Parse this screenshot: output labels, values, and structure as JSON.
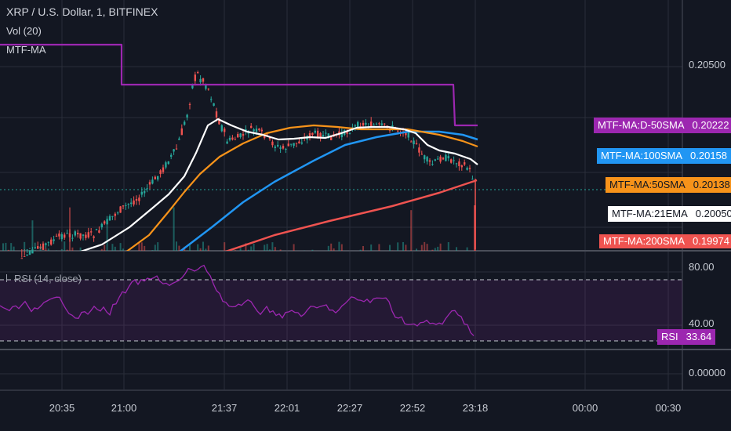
{
  "header": {
    "symbol": "XRP / U.S. Dollar, 1, BITFINEX",
    "volume_indicator": "Vol (20)",
    "ma_indicator": "MTF-MA",
    "rsi_indicator": "RSI (14, close)"
  },
  "colors": {
    "background": "#131722",
    "grid": "#2a2e39",
    "up_candle": "#26a69a",
    "down_candle": "#ef5350",
    "ma_21ema": "#ffffff",
    "ma_50sma": "#f7931a",
    "ma_100sma": "#2196f3",
    "ma_200sma": "#ef5350",
    "ma_d50sma": "#9c27b0",
    "rsi": "#9c27b0"
  },
  "price_axis": {
    "labels": [
      "0.20500"
    ]
  },
  "rsi_axis": {
    "labels": [
      "80.00",
      "40.00"
    ],
    "zero_label": "0.00000"
  },
  "time_axis": {
    "labels": [
      "20:35",
      "21:00",
      "21:37",
      "22:01",
      "22:27",
      "22:52",
      "23:18",
      "00:00",
      "00:30"
    ]
  },
  "ma_tags": [
    {
      "name": "MTF-MA:D-50SMA",
      "value": "0.20222",
      "color": "#9c27b0",
      "text": "#ffffff"
    },
    {
      "name": "MTF-MA:100SMA",
      "value": "0.20158",
      "color": "#2196f3",
      "text": "#ffffff"
    },
    {
      "name": "MTF-MA:50SMA",
      "value": "0.20138",
      "color": "#f7931a",
      "text": "#131722"
    },
    {
      "name": "MTF-MA:21EMA",
      "value": "0.20050",
      "color": "#ffffff",
      "text": "#131722"
    },
    {
      "name": "MTF-MA:200SMA",
      "value": "0.19974",
      "color": "#ef5350",
      "text": "#ffffff"
    }
  ],
  "rsi_tag": {
    "name": "RSI",
    "value": "33.64",
    "color": "#9c27b0"
  },
  "chart_data": {
    "type": "line",
    "series": [
      {
        "name": "MTF-MA:D-50SMA",
        "last": 0.20222
      },
      {
        "name": "MTF-MA:100SMA",
        "last": 0.20158
      },
      {
        "name": "MTF-MA:50SMA",
        "last": 0.20138
      },
      {
        "name": "MTF-MA:21EMA",
        "last": 0.2005
      },
      {
        "name": "MTF-MA:200SMA",
        "last": 0.19974
      },
      {
        "name": "RSI",
        "last": 33.64
      }
    ],
    "rsi_bands": [
      70,
      30
    ],
    "grid": true
  }
}
